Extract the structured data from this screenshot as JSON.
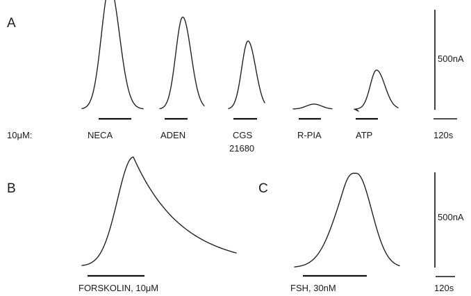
{
  "chart_data": [
    {
      "type": "line",
      "panel": "A",
      "concentration_label": "10μM:",
      "scale": {
        "current": "500nA",
        "time": "120s"
      },
      "series": [
        {
          "name": "NECA",
          "peak_nA": 615,
          "bar_label": [
            "NECA"
          ]
        },
        {
          "name": "ADEN",
          "peak_nA": 460,
          "bar_label": [
            "ADEN"
          ]
        },
        {
          "name": "CGS 21680",
          "peak_nA": 340,
          "bar_label": [
            "CGS",
            "21680"
          ]
        },
        {
          "name": "R-PIA",
          "peak_nA": 25,
          "bar_label": [
            "R-PIA"
          ]
        },
        {
          "name": "ATP",
          "peak_nA": 195,
          "bar_label": [
            "ATP"
          ]
        }
      ]
    },
    {
      "type": "line",
      "panel": "B",
      "series": [
        {
          "name": "FORSKOLIN, 10μM",
          "peak_nA": 545
        }
      ],
      "bar_label": "FORSKOLIN, 10μM"
    },
    {
      "type": "line",
      "panel": "C",
      "series": [
        {
          "name": "FSH, 30nM",
          "peak_nA": 495
        }
      ],
      "bar_label": "FSH, 30nM",
      "scale": {
        "current": "500nA",
        "time": "120s"
      }
    }
  ]
}
